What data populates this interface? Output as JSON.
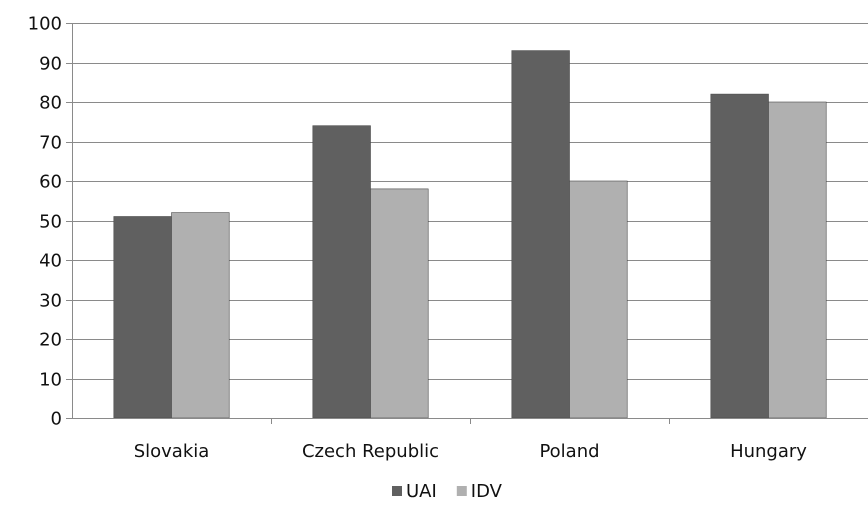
{
  "chart_data": {
    "type": "bar",
    "categories": [
      "Slovakia",
      "Czech Republic",
      "Poland",
      "Hungary"
    ],
    "series": [
      {
        "name": "UAI",
        "values": [
          51,
          74,
          93,
          82
        ],
        "color": "#606060"
      },
      {
        "name": "IDV",
        "values": [
          52,
          58,
          60,
          80
        ],
        "color": "#b0b0b0"
      }
    ],
    "ylim": [
      0,
      100
    ],
    "yticks": [
      0,
      10,
      20,
      30,
      40,
      50,
      60,
      70,
      80,
      90,
      100
    ],
    "grid": true,
    "legend_position": "bottom",
    "title": "",
    "xlabel": "",
    "ylabel": ""
  }
}
